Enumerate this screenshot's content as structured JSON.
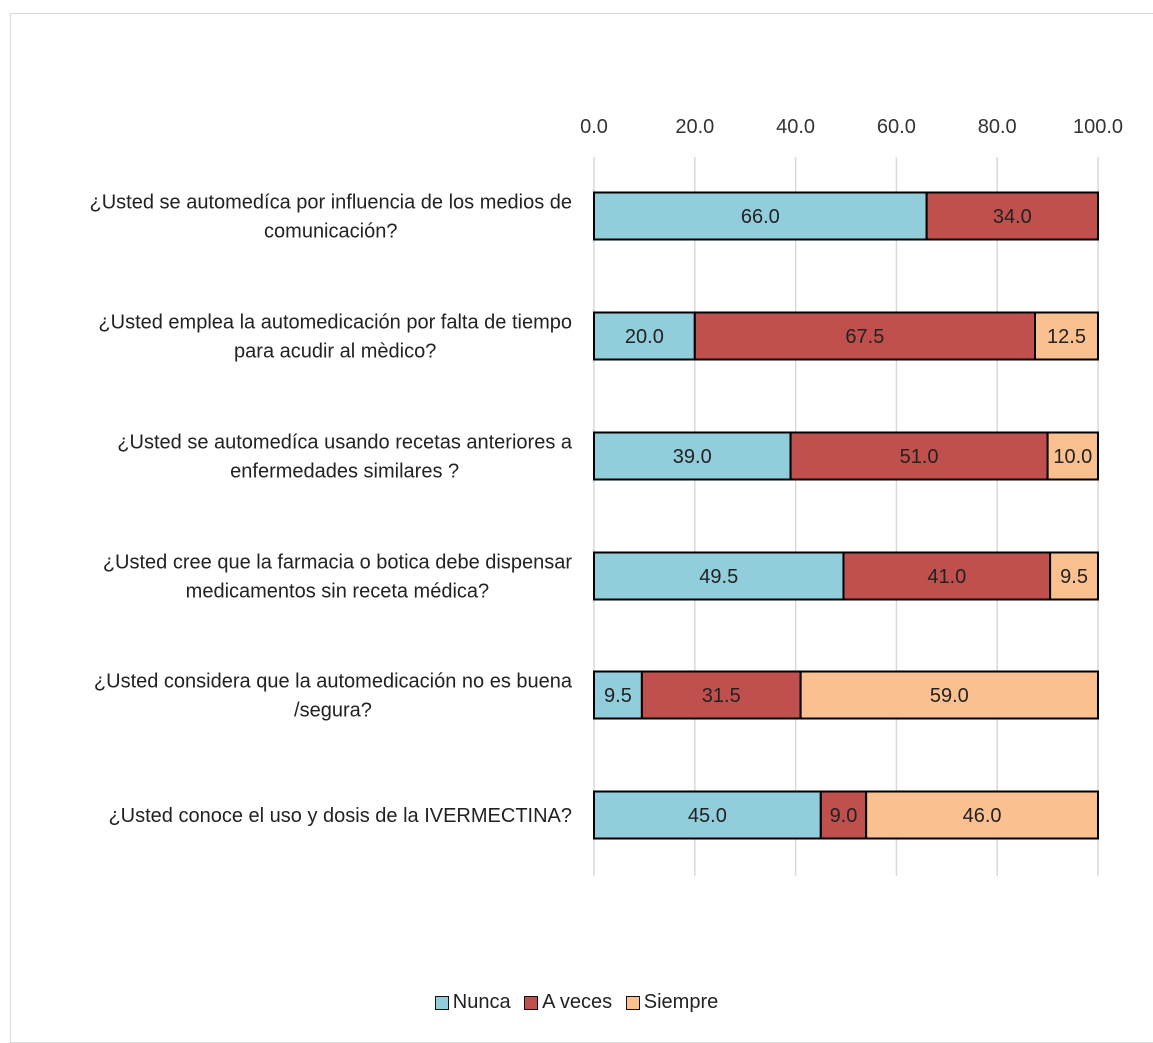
{
  "chart_data": {
    "type": "bar",
    "orientation": "horizontal",
    "stacked": true,
    "title": "",
    "xlabel": "",
    "ylabel": "",
    "xlim": [
      0,
      100
    ],
    "ticks": [
      "0.0",
      "20.0",
      "40.0",
      "60.0",
      "80.0",
      "100.0"
    ],
    "tick_values": [
      0,
      20,
      40,
      60,
      80,
      100
    ],
    "axis_position": "top",
    "grid": true,
    "legend_position": "bottom",
    "categories": [
      [
        "¿Usted se automedíca por influencia de los medios de",
        "comunicación?"
      ],
      [
        "¿Usted emplea la automedicación por falta de tiempo",
        "para acudir al mèdico?"
      ],
      [
        "¿Usted se automedíca usando recetas anteriores a",
        "enfermedades similares ?"
      ],
      [
        "¿Usted cree que la farmacia o botica debe dispensar",
        "medicamentos sin receta médica?"
      ],
      [
        "¿Usted considera que la automedicación no es buena",
        "/segura?"
      ],
      [
        "¿Usted conoce el uso y dosis de la IVERMECTINA?"
      ]
    ],
    "series": [
      {
        "name": "Nunca",
        "color": "#92cddc",
        "values": [
          66.0,
          20.0,
          39.0,
          49.5,
          9.5,
          45.0
        ],
        "labels": [
          "66.0",
          "20.0",
          "39.0",
          "49.5",
          "9.5",
          "45.0"
        ]
      },
      {
        "name": "A veces",
        "color": "#c0504d",
        "values": [
          34.0,
          67.5,
          51.0,
          41.0,
          31.5,
          9.0
        ],
        "labels": [
          "34.0",
          "67.5",
          "51.0",
          "41.0",
          "31.5",
          "9.0"
        ]
      },
      {
        "name": "Siempre",
        "color": "#fac090",
        "values": [
          0,
          12.5,
          10.0,
          9.5,
          59.0,
          46.0
        ],
        "labels": [
          "",
          "12.5",
          "10.0",
          "9.5",
          "59.0",
          "46.0"
        ]
      }
    ]
  }
}
